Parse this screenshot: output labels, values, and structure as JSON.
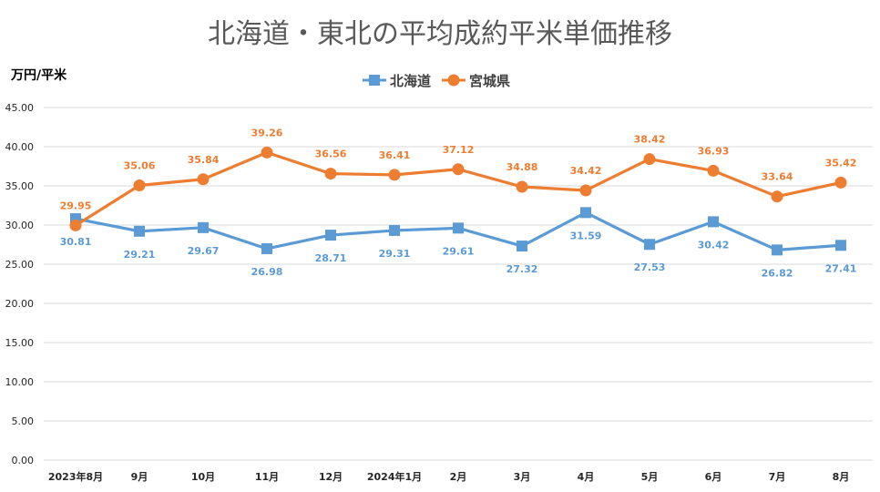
{
  "chart_data": {
    "type": "line",
    "title": "北海道・東北の平均成約平米単価推移",
    "ylabel": "万円/平米",
    "xlabel": "",
    "ylim": [
      0,
      45
    ],
    "y_ticks": [
      "0.00",
      "5.00",
      "10.00",
      "15.00",
      "20.00",
      "25.00",
      "30.00",
      "35.00",
      "40.00",
      "45.00"
    ],
    "y_tick_values": [
      0,
      5,
      10,
      15,
      20,
      25,
      30,
      35,
      40,
      45
    ],
    "grid": true,
    "legend_position": "top-center",
    "categories": [
      "2023年8月",
      "9月",
      "10月",
      "11月",
      "12月",
      "2024年1月",
      "2月",
      "3月",
      "4月",
      "5月",
      "6月",
      "7月",
      "8月"
    ],
    "series": [
      {
        "name": "北海道",
        "color": "#5B9BD5",
        "marker": "square",
        "values": [
          30.81,
          29.21,
          29.67,
          26.98,
          28.71,
          29.31,
          29.61,
          27.32,
          31.59,
          27.53,
          30.42,
          26.82,
          27.41
        ],
        "labels": [
          "30.81",
          "29.21",
          "29.67",
          "26.98",
          "28.71",
          "29.31",
          "29.61",
          "27.32",
          "31.59",
          "27.53",
          "30.42",
          "26.82",
          "27.41"
        ],
        "label_position": "below"
      },
      {
        "name": "宮城県",
        "color": "#ED7D31",
        "marker": "circle",
        "values": [
          29.95,
          35.06,
          35.84,
          39.26,
          36.56,
          36.41,
          37.12,
          34.88,
          34.42,
          38.42,
          36.93,
          33.64,
          35.42
        ],
        "labels": [
          "29.95",
          "35.06",
          "35.84",
          "39.26",
          "36.56",
          "36.41",
          "37.12",
          "34.88",
          "34.42",
          "38.42",
          "36.93",
          "33.64",
          "35.42"
        ],
        "label_position": "above"
      }
    ]
  }
}
